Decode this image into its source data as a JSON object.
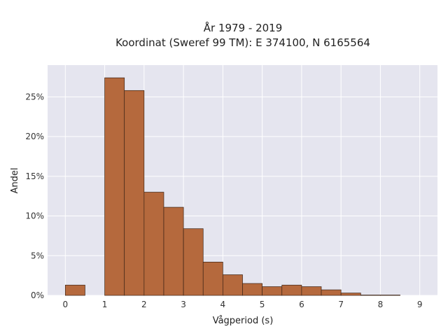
{
  "chart_data": {
    "type": "bar",
    "title_line1": "År 1979 - 2019",
    "title_line2": "Koordinat (Sweref 99 TM): E 374100, N 6165564",
    "xlabel": "Vågperiod (s)",
    "ylabel": "Andel",
    "bin_width": 0.5,
    "bins": [
      {
        "x0": 0.0,
        "value": 1.3
      },
      {
        "x0": 0.5,
        "value": 0.0
      },
      {
        "x0": 1.0,
        "value": 27.4
      },
      {
        "x0": 1.5,
        "value": 25.8
      },
      {
        "x0": 2.0,
        "value": 13.0
      },
      {
        "x0": 2.5,
        "value": 11.1
      },
      {
        "x0": 3.0,
        "value": 8.4
      },
      {
        "x0": 3.5,
        "value": 4.2
      },
      {
        "x0": 4.0,
        "value": 2.6
      },
      {
        "x0": 4.5,
        "value": 1.5
      },
      {
        "x0": 5.0,
        "value": 1.1
      },
      {
        "x0": 5.5,
        "value": 1.3
      },
      {
        "x0": 6.0,
        "value": 1.1
      },
      {
        "x0": 6.5,
        "value": 0.7
      },
      {
        "x0": 7.0,
        "value": 0.3
      },
      {
        "x0": 7.5,
        "value": 0.05
      },
      {
        "x0": 8.0,
        "value": 0.05
      }
    ],
    "xlim": [
      -0.45,
      9.45
    ],
    "ylim": [
      0,
      29
    ],
    "x_ticks": [
      0,
      1,
      2,
      3,
      4,
      5,
      6,
      7,
      8,
      9
    ],
    "x_tick_labels": [
      "0",
      "1",
      "2",
      "3",
      "4",
      "5",
      "6",
      "7",
      "8",
      "9"
    ],
    "y_ticks": [
      0,
      5,
      10,
      15,
      20,
      25
    ],
    "y_tick_labels": [
      "0%",
      "5%",
      "10%",
      "15%",
      "20%",
      "25%"
    ],
    "grid": true,
    "colors": {
      "bar_fill": "#b5693d",
      "bar_stroke": "#3c2416",
      "plot_bg": "#e5e5ef",
      "grid": "#ffffff"
    }
  }
}
